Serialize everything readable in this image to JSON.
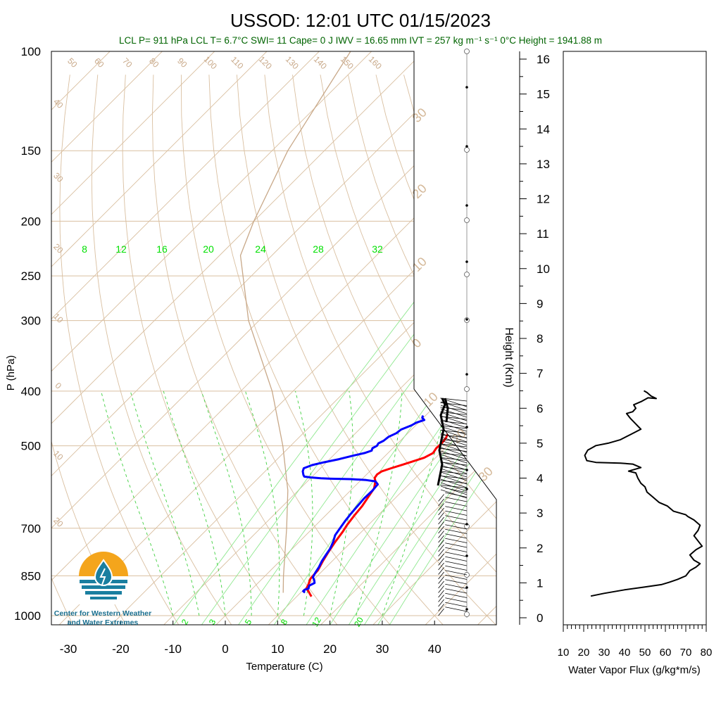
{
  "title": "USSOD: 12:01 UTC 01/15/2023",
  "subtitle": "LCL P= 911 hPa  LCL T= 6.7°C  SWI= 11  Cape= 0 J  IWV = 16.65 mm  IVT = 257 kg m⁻¹ s⁻¹  0°C Height = 1941.88 m",
  "colors": {
    "temperature": "#ff0000",
    "dewpoint": "#0000ff",
    "dry_adiabat": "#d9bfa0",
    "isotherm": "#d9bfa0",
    "mixing_ratio": "#00e000",
    "moist_adiabat": "#00d000",
    "parcel": "#c8a888",
    "title_green": "#006400",
    "logo_orange": "#f4a51c",
    "logo_teal": "#1a7fa0",
    "logo_text": "#1a6f8f"
  },
  "logo": {
    "line1": "Center for Western Weather",
    "line2": "and Water Extremes"
  },
  "chart_data": [
    {
      "type": "line",
      "name": "skew-t",
      "xlabel": "Temperature (C)",
      "ylabel": "P (hPa)",
      "xlim": [
        -35,
        35
      ],
      "ylim": [
        1050,
        100
      ],
      "x_ticks": [
        -30,
        -20,
        -10,
        0,
        10,
        20,
        30,
        40
      ],
      "y_ticks": [
        100,
        150,
        200,
        250,
        300,
        400,
        500,
        700,
        850,
        1000
      ],
      "mixing_ratio_labels": [
        "8",
        "12",
        "16",
        "20",
        "24",
        "28",
        "32"
      ],
      "mixing_ratio_bottom_labels": [
        "2",
        "3",
        "5",
        "8",
        "12",
        "20"
      ],
      "dry_adiabat_labels": [
        "50",
        "60",
        "70",
        "80",
        "90",
        "100",
        "110",
        "120",
        "130",
        "140",
        "150",
        "160"
      ],
      "isotherm_left_labels": [
        "40",
        "30",
        "20",
        "10",
        "0",
        "10",
        "20"
      ],
      "isotherm_right_labels": [
        "30",
        "20",
        "10",
        "0",
        "10",
        "20",
        "30"
      ],
      "series": [
        {
          "name": "Temperature",
          "points": [
            {
              "p": 925,
              "t": 12.8
            },
            {
              "p": 915,
              "t": 12.0
            },
            {
              "p": 905,
              "t": 11.2
            },
            {
              "p": 895,
              "t": 10.3
            },
            {
              "p": 880,
              "t": 9.9
            },
            {
              "p": 860,
              "t": 9.2
            },
            {
              "p": 830,
              "t": 9.0
            },
            {
              "p": 800,
              "t": 8.2
            },
            {
              "p": 770,
              "t": 7.5
            },
            {
              "p": 740,
              "t": 6.9
            },
            {
              "p": 710,
              "t": 6.4
            },
            {
              "p": 690,
              "t": 5.9
            },
            {
              "p": 665,
              "t": 5.5
            },
            {
              "p": 640,
              "t": 5.2
            },
            {
              "p": 615,
              "t": 4.6
            },
            {
              "p": 595,
              "t": 4.1
            },
            {
              "p": 578,
              "t": 3.0
            },
            {
              "p": 570,
              "t": 2.2
            },
            {
              "p": 562,
              "t": 2.0
            },
            {
              "p": 555,
              "t": 2.3
            },
            {
              "p": 548,
              "t": 3.5
            },
            {
              "p": 540,
              "t": 5.0
            },
            {
              "p": 532,
              "t": 6.5
            },
            {
              "p": 525,
              "t": 7.8
            },
            {
              "p": 515,
              "t": 8.6
            },
            {
              "p": 505,
              "t": 8.3
            },
            {
              "p": 495,
              "t": 8.4
            },
            {
              "p": 485,
              "t": 8.2
            },
            {
              "p": 475,
              "t": 7.7
            },
            {
              "p": 465,
              "t": 7.4
            },
            {
              "p": 458,
              "t": 7.2
            },
            {
              "p": 452,
              "t": 7.3
            },
            {
              "p": 445,
              "t": 8.0
            }
          ]
        },
        {
          "name": "Dewpoint",
          "points": [
            {
              "p": 910,
              "t": 10.8
            },
            {
              "p": 905,
              "t": 10.2
            },
            {
              "p": 900,
              "t": 10.2
            },
            {
              "p": 895,
              "t": 10.7
            },
            {
              "p": 885,
              "t": 10.3
            },
            {
              "p": 875,
              "t": 10.8
            },
            {
              "p": 865,
              "t": 10.2
            },
            {
              "p": 855,
              "t": 9.4
            },
            {
              "p": 840,
              "t": 9.0
            },
            {
              "p": 820,
              "t": 8.6
            },
            {
              "p": 800,
              "t": 8.0
            },
            {
              "p": 780,
              "t": 7.6
            },
            {
              "p": 760,
              "t": 7.2
            },
            {
              "p": 740,
              "t": 6.5
            },
            {
              "p": 720,
              "t": 5.6
            },
            {
              "p": 700,
              "t": 5.2
            },
            {
              "p": 680,
              "t": 4.8
            },
            {
              "p": 660,
              "t": 4.5
            },
            {
              "p": 640,
              "t": 4.3
            },
            {
              "p": 620,
              "t": 4.1
            },
            {
              "p": 600,
              "t": 4.2
            },
            {
              "p": 585,
              "t": 4.0
            },
            {
              "p": 578,
              "t": 3.0
            },
            {
              "p": 575,
              "t": 1.0
            },
            {
              "p": 573,
              "t": -2.0
            },
            {
              "p": 572,
              "t": -6.0
            },
            {
              "p": 571,
              "t": -8.0
            },
            {
              "p": 569,
              "t": -10.0
            },
            {
              "p": 567,
              "t": -11.5
            },
            {
              "p": 563,
              "t": -12.0
            },
            {
              "p": 555,
              "t": -12.8
            },
            {
              "p": 548,
              "t": -13.2
            },
            {
              "p": 541,
              "t": -12.2
            },
            {
              "p": 535,
              "t": -10.5
            },
            {
              "p": 528,
              "t": -8.2
            },
            {
              "p": 520,
              "t": -6.0
            },
            {
              "p": 515,
              "t": -4.5
            },
            {
              "p": 510,
              "t": -3.6
            },
            {
              "p": 505,
              "t": -3.9
            },
            {
              "p": 500,
              "t": -3.5
            },
            {
              "p": 495,
              "t": -3.7
            },
            {
              "p": 490,
              "t": -3.2
            },
            {
              "p": 482,
              "t": -3.0
            },
            {
              "p": 475,
              "t": -2.2
            },
            {
              "p": 468,
              "t": -2.0
            },
            {
              "p": 460,
              "t": -0.8
            },
            {
              "p": 455,
              "t": -0.4
            },
            {
              "p": 450,
              "t": 0.6
            },
            {
              "p": 446,
              "t": -0.2
            },
            {
              "p": 442,
              "t": -0.5
            }
          ]
        },
        {
          "name": "Parcel",
          "points": [
            {
              "p": 911,
              "t": 6.7
            },
            {
              "p": 850,
              "t": 3.5
            },
            {
              "p": 700,
              "t": -5.0
            },
            {
              "p": 600,
              "t": -12.0
            },
            {
              "p": 500,
              "t": -21.5
            },
            {
              "p": 400,
              "t": -34.0
            },
            {
              "p": 300,
              "t": -52.0
            },
            {
              "p": 230,
              "t": -66.0
            },
            {
              "p": 200,
              "t": -70.0
            },
            {
              "p": 150,
              "t": -77.0
            },
            {
              "p": 100,
              "t": -84.0
            }
          ]
        }
      ]
    },
    {
      "type": "line",
      "name": "water-vapor-flux",
      "xlabel": "Water Vapor Flux (g/kg*m/s)",
      "ylabel": "Height (Km)",
      "xlim": [
        10,
        80
      ],
      "ylim": [
        0,
        16
      ],
      "x_ticks": [
        10,
        20,
        30,
        40,
        50,
        60,
        70,
        80
      ],
      "y_ticks": [
        0,
        1,
        2,
        3,
        4,
        5,
        6,
        7,
        8,
        9,
        10,
        11,
        12,
        13,
        14,
        15,
        16
      ],
      "series": [
        {
          "name": "Water Vapor Flux",
          "points": [
            {
              "x": 23.5,
              "h": 0.62
            },
            {
              "x": 30,
              "h": 0.7
            },
            {
              "x": 40,
              "h": 0.8
            },
            {
              "x": 50,
              "h": 0.88
            },
            {
              "x": 58,
              "h": 0.95
            },
            {
              "x": 62,
              "h": 1.02
            },
            {
              "x": 66,
              "h": 1.1
            },
            {
              "x": 68,
              "h": 1.15
            },
            {
              "x": 70,
              "h": 1.2
            },
            {
              "x": 72,
              "h": 1.35
            },
            {
              "x": 75,
              "h": 1.45
            },
            {
              "x": 77,
              "h": 1.55
            },
            {
              "x": 74,
              "h": 1.65
            },
            {
              "x": 72,
              "h": 1.8
            },
            {
              "x": 75,
              "h": 1.95
            },
            {
              "x": 78,
              "h": 2.05
            },
            {
              "x": 76,
              "h": 2.2
            },
            {
              "x": 74,
              "h": 2.35
            },
            {
              "x": 76,
              "h": 2.5
            },
            {
              "x": 77,
              "h": 2.65
            },
            {
              "x": 74,
              "h": 2.8
            },
            {
              "x": 71,
              "h": 2.9
            },
            {
              "x": 70,
              "h": 2.95
            },
            {
              "x": 67,
              "h": 3.0
            },
            {
              "x": 64,
              "h": 3.05
            },
            {
              "x": 61,
              "h": 3.2
            },
            {
              "x": 57,
              "h": 3.3
            },
            {
              "x": 54,
              "h": 3.45
            },
            {
              "x": 51,
              "h": 3.6
            },
            {
              "x": 50,
              "h": 3.75
            },
            {
              "x": 48,
              "h": 3.85
            },
            {
              "x": 46.5,
              "h": 4.0
            },
            {
              "x": 45.5,
              "h": 4.15
            },
            {
              "x": 42,
              "h": 4.2
            },
            {
              "x": 48,
              "h": 4.3
            },
            {
              "x": 44,
              "h": 4.4
            },
            {
              "x": 38,
              "h": 4.43
            },
            {
              "x": 26,
              "h": 4.45
            },
            {
              "x": 21.5,
              "h": 4.5
            },
            {
              "x": 20.5,
              "h": 4.65
            },
            {
              "x": 22,
              "h": 4.8
            },
            {
              "x": 26,
              "h": 4.93
            },
            {
              "x": 32,
              "h": 5.0
            },
            {
              "x": 38,
              "h": 5.1
            },
            {
              "x": 43,
              "h": 5.25
            },
            {
              "x": 48,
              "h": 5.4
            },
            {
              "x": 45.5,
              "h": 5.55
            },
            {
              "x": 43,
              "h": 5.7
            },
            {
              "x": 41,
              "h": 5.85
            },
            {
              "x": 44,
              "h": 5.9
            },
            {
              "x": 45.5,
              "h": 6.0
            },
            {
              "x": 44.5,
              "h": 6.1
            },
            {
              "x": 48.5,
              "h": 6.2
            },
            {
              "x": 51.5,
              "h": 6.3
            },
            {
              "x": 55.5,
              "h": 6.28
            },
            {
              "x": 53,
              "h": 6.35
            },
            {
              "x": 52,
              "h": 6.4
            },
            {
              "x": 51,
              "h": 6.45
            },
            {
              "x": 49.5,
              "h": 6.5
            }
          ]
        }
      ]
    }
  ]
}
